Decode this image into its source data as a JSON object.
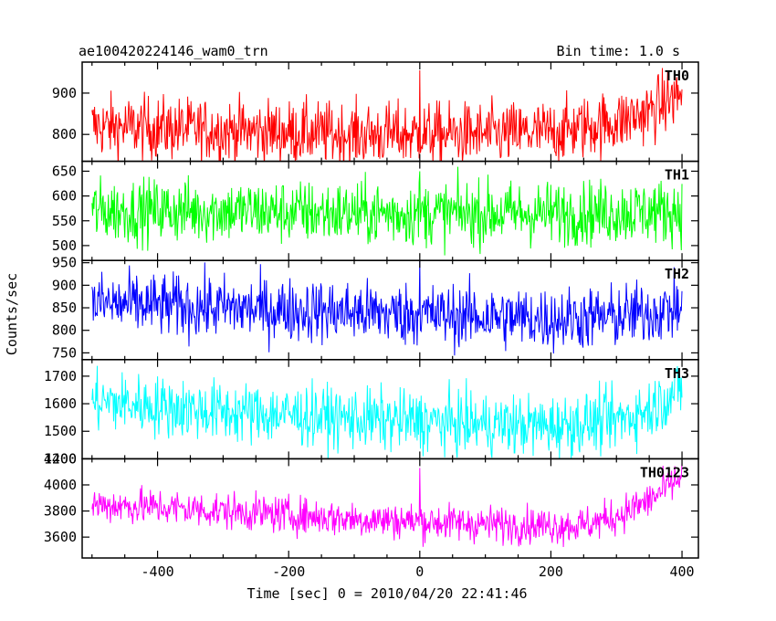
{
  "header": {
    "title_left": "ae100420224146_wam0_trn",
    "title_right": "Bin time: 1.0 s"
  },
  "chart_data": {
    "type": "line",
    "xlabel": "Time [sec] 0 = 2010/04/20 22:41:46",
    "ylabel": "Counts/sec",
    "xlim": [
      -515,
      425
    ],
    "x_ticks": [
      -400,
      -200,
      0,
      200,
      400
    ],
    "x_range": [
      -500,
      400
    ],
    "bin_time_s": 1.0,
    "panels": [
      {
        "name": "TH0",
        "color": "#ff0000",
        "ylim": [
          735,
          975
        ],
        "y_ticks": [
          800,
          900
        ],
        "baseline": [
          [
            -500,
            820
          ],
          [
            -400,
            815
          ],
          [
            -300,
            810
          ],
          [
            -200,
            805
          ],
          [
            -100,
            800
          ],
          [
            0,
            800
          ],
          [
            100,
            800
          ],
          [
            200,
            805
          ],
          [
            300,
            830
          ],
          [
            350,
            855
          ],
          [
            400,
            900
          ]
        ],
        "noise": 38,
        "spikes": [
          [
            0,
            955
          ]
        ]
      },
      {
        "name": "TH1",
        "color": "#00ff00",
        "ylim": [
          470,
          670
        ],
        "y_ticks": [
          500,
          550,
          600,
          650
        ],
        "baseline": [
          [
            -500,
            570
          ],
          [
            -300,
            570
          ],
          [
            -100,
            565
          ],
          [
            0,
            565
          ],
          [
            200,
            565
          ],
          [
            400,
            570
          ]
        ],
        "noise": 32,
        "spikes": [
          [
            0,
            650
          ]
        ]
      },
      {
        "name": "TH2",
        "color": "#0000ff",
        "ylim": [
          735,
          955
        ],
        "y_ticks": [
          750,
          800,
          850,
          900,
          950
        ],
        "baseline": [
          [
            -500,
            860
          ],
          [
            -400,
            855
          ],
          [
            -300,
            850
          ],
          [
            -200,
            845
          ],
          [
            -100,
            840
          ],
          [
            0,
            835
          ],
          [
            100,
            830
          ],
          [
            200,
            825
          ],
          [
            300,
            830
          ],
          [
            400,
            850
          ]
        ],
        "noise": 35,
        "spikes": [
          [
            0,
            955
          ]
        ]
      },
      {
        "name": "TH3",
        "color": "#00ffff",
        "ylim": [
          1400,
          1760
        ],
        "y_ticks": [
          1400,
          1500,
          1600,
          1700
        ],
        "baseline": [
          [
            -500,
            1610
          ],
          [
            -400,
            1590
          ],
          [
            -300,
            1570
          ],
          [
            -200,
            1560
          ],
          [
            -100,
            1545
          ],
          [
            0,
            1535
          ],
          [
            100,
            1525
          ],
          [
            200,
            1520
          ],
          [
            300,
            1540
          ],
          [
            350,
            1580
          ],
          [
            400,
            1660
          ]
        ],
        "noise": 55,
        "spikes": [
          [
            0,
            1610
          ]
        ]
      },
      {
        "name": "TH0123",
        "color": "#ff00ff",
        "ylim": [
          3440,
          4200
        ],
        "y_ticks": [
          3600,
          3800,
          4000,
          4200
        ],
        "baseline": [
          [
            -500,
            3850
          ],
          [
            -400,
            3830
          ],
          [
            -300,
            3800
          ],
          [
            -200,
            3770
          ],
          [
            -100,
            3740
          ],
          [
            0,
            3720
          ],
          [
            100,
            3700
          ],
          [
            200,
            3690
          ],
          [
            250,
            3690
          ],
          [
            300,
            3760
          ],
          [
            350,
            3880
          ],
          [
            400,
            4060
          ]
        ],
        "noise": 70,
        "spikes": [
          [
            0,
            4130
          ]
        ]
      }
    ]
  }
}
